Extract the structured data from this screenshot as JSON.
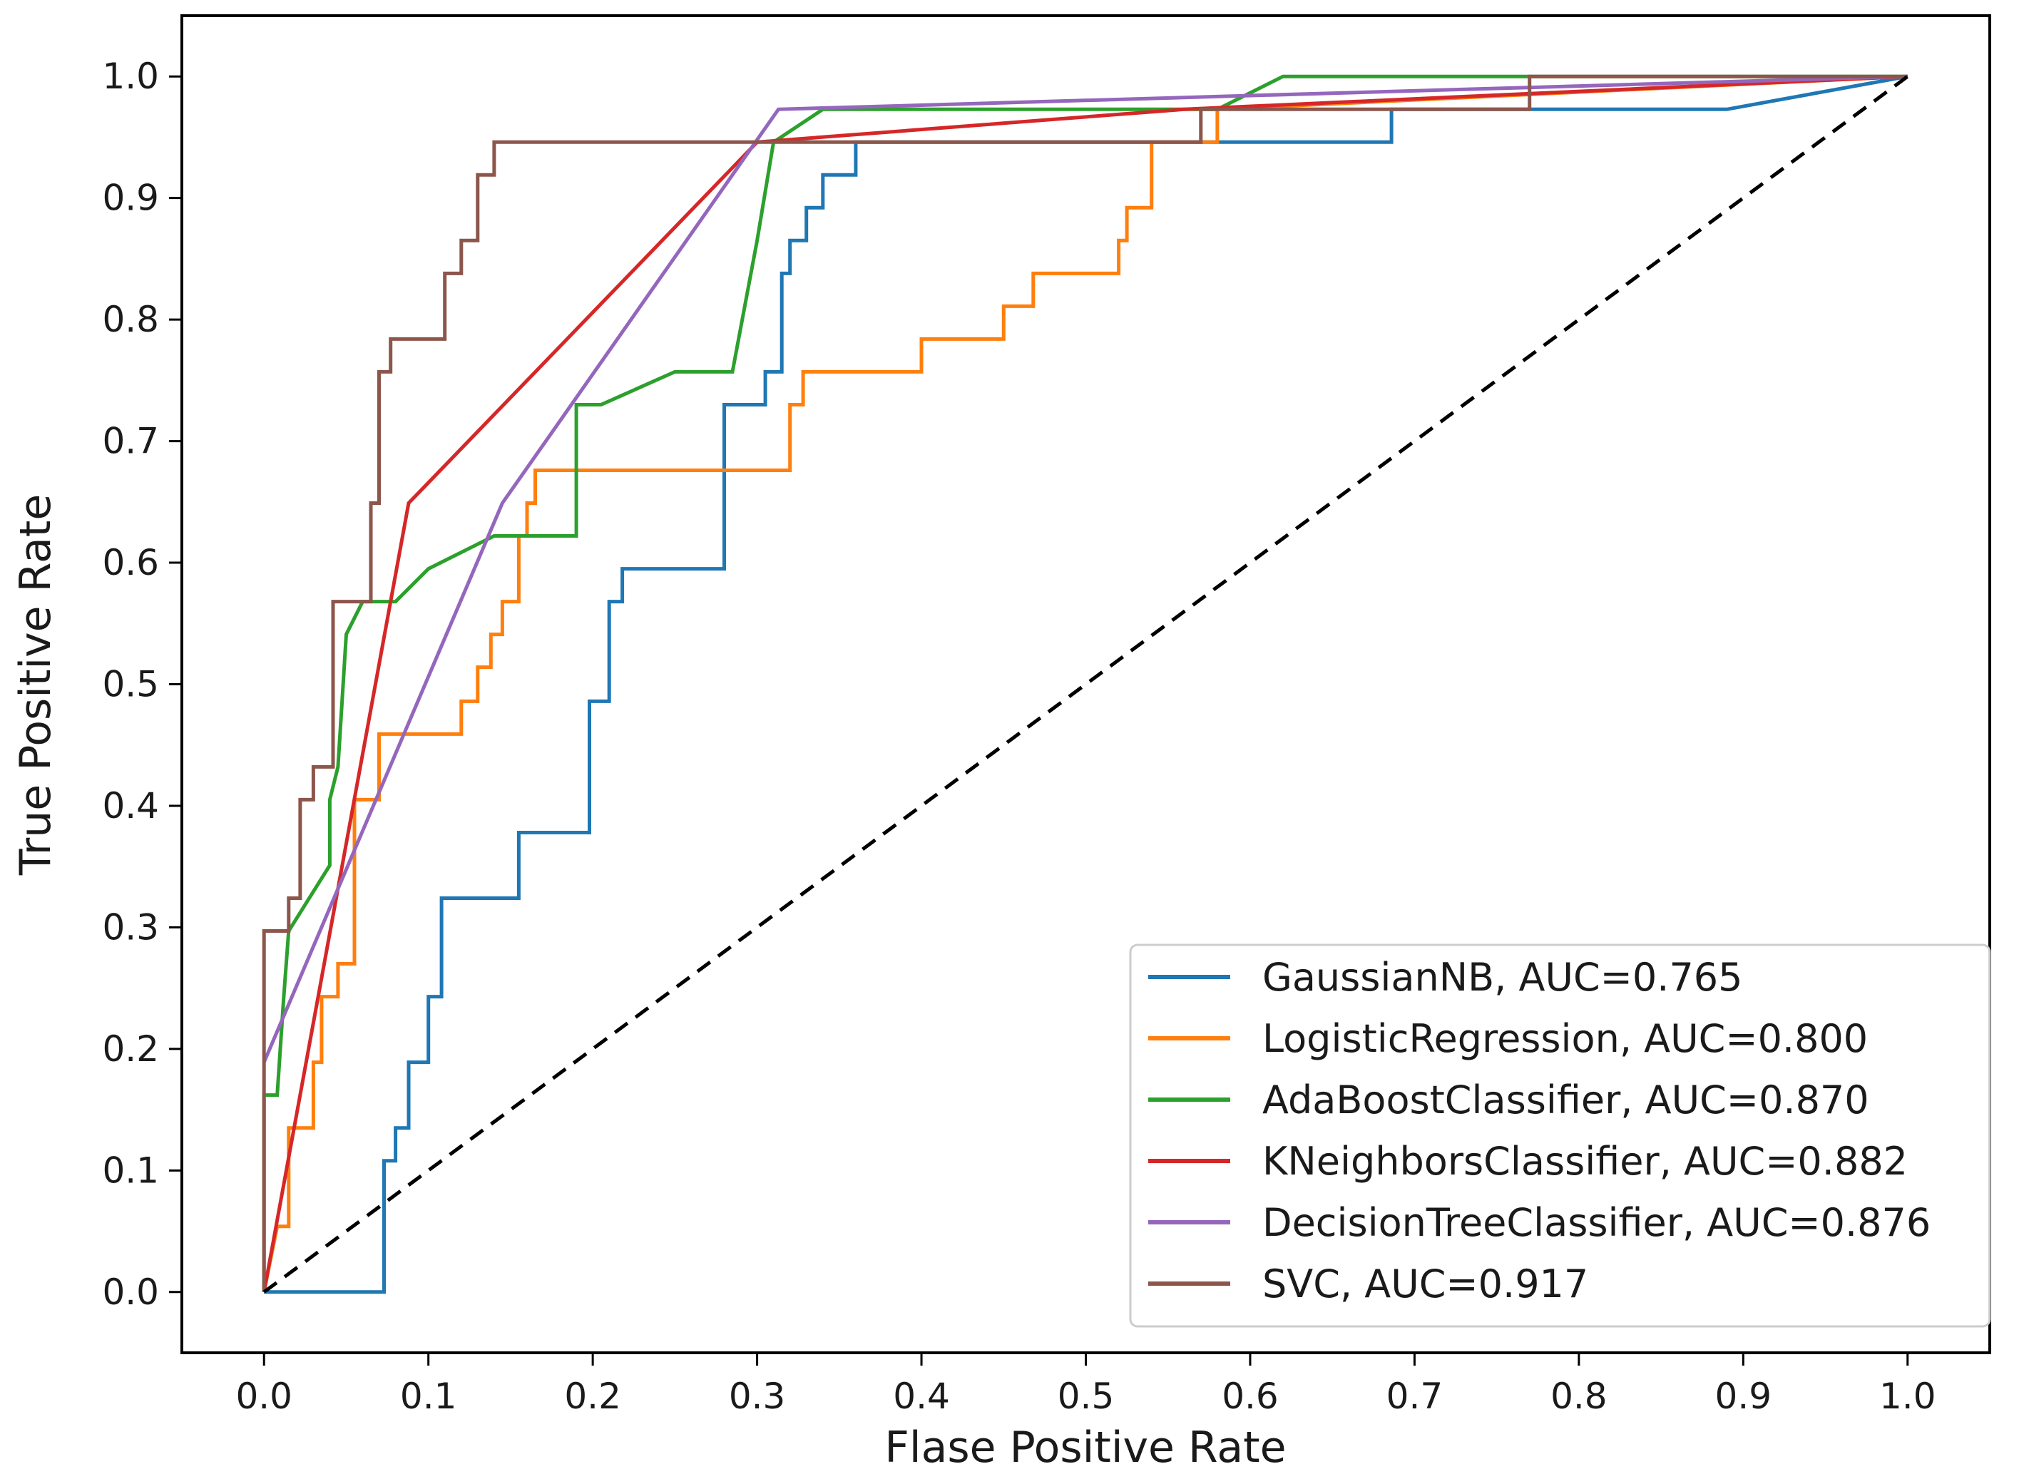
{
  "chart_data": {
    "type": "line",
    "title": "",
    "xlabel": "Flase Positive Rate",
    "ylabel": "True Positive Rate",
    "xlim": [
      -0.05,
      1.05
    ],
    "ylim": [
      -0.05,
      1.05
    ],
    "xticks": [
      "0.0",
      "0.1",
      "0.2",
      "0.3",
      "0.4",
      "0.5",
      "0.6",
      "0.7",
      "0.8",
      "0.9",
      "1.0"
    ],
    "yticks": [
      "0.0",
      "0.1",
      "0.2",
      "0.3",
      "0.4",
      "0.5",
      "0.6",
      "0.7",
      "0.8",
      "0.9",
      "1.0"
    ],
    "legend_position": "lower-right",
    "series": [
      {
        "name": "GaussianNB",
        "label": "GaussianNB, AUC=0.765",
        "auc": 0.765,
        "color": "#1f77b4",
        "x": [
          0.0,
          0.073,
          0.073,
          0.08,
          0.08,
          0.088,
          0.088,
          0.1,
          0.1,
          0.108,
          0.108,
          0.155,
          0.155,
          0.198,
          0.198,
          0.21,
          0.21,
          0.218,
          0.218,
          0.28,
          0.28,
          0.305,
          0.305,
          0.315,
          0.315,
          0.32,
          0.32,
          0.33,
          0.33,
          0.34,
          0.34,
          0.36,
          0.36,
          0.365,
          0.365,
          0.58,
          0.58,
          0.686,
          0.686,
          0.89,
          1.0
        ],
        "y": [
          0.0,
          0.0,
          0.108,
          0.108,
          0.135,
          0.135,
          0.189,
          0.189,
          0.243,
          0.243,
          0.324,
          0.324,
          0.378,
          0.378,
          0.486,
          0.486,
          0.568,
          0.568,
          0.595,
          0.595,
          0.73,
          0.73,
          0.757,
          0.757,
          0.838,
          0.838,
          0.865,
          0.865,
          0.892,
          0.892,
          0.919,
          0.919,
          0.946,
          0.946,
          0.946,
          0.946,
          0.946,
          0.946,
          0.973,
          0.973,
          1.0
        ]
      },
      {
        "name": "LogisticRegression",
        "label": "LogisticRegression, AUC=0.800",
        "auc": 0.8,
        "color": "#ff7f0e",
        "x": [
          0.0,
          0.008,
          0.015,
          0.015,
          0.03,
          0.03,
          0.035,
          0.035,
          0.045,
          0.045,
          0.055,
          0.055,
          0.07,
          0.07,
          0.12,
          0.12,
          0.13,
          0.13,
          0.138,
          0.138,
          0.145,
          0.145,
          0.155,
          0.155,
          0.16,
          0.16,
          0.165,
          0.165,
          0.175,
          0.175,
          0.32,
          0.32,
          0.328,
          0.328,
          0.38,
          0.38,
          0.4,
          0.4,
          0.45,
          0.45,
          0.468,
          0.468,
          0.52,
          0.52,
          0.525,
          0.525,
          0.53,
          0.53,
          0.54,
          0.54,
          0.58,
          0.58,
          1.0
        ],
        "y": [
          0.0,
          0.054,
          0.054,
          0.135,
          0.135,
          0.189,
          0.189,
          0.243,
          0.243,
          0.27,
          0.27,
          0.405,
          0.405,
          0.459,
          0.459,
          0.486,
          0.486,
          0.514,
          0.514,
          0.541,
          0.541,
          0.568,
          0.568,
          0.622,
          0.622,
          0.649,
          0.649,
          0.676,
          0.676,
          0.676,
          0.676,
          0.73,
          0.73,
          0.757,
          0.757,
          0.757,
          0.757,
          0.784,
          0.784,
          0.811,
          0.811,
          0.838,
          0.838,
          0.865,
          0.865,
          0.892,
          0.892,
          0.892,
          0.892,
          0.946,
          0.946,
          0.973,
          1.0
        ]
      },
      {
        "name": "AdaBoostClassifier",
        "label": "AdaBoostClassifier, AUC=0.870",
        "auc": 0.87,
        "color": "#2ca02c",
        "x": [
          0.0,
          0.0,
          0.008,
          0.008,
          0.012,
          0.015,
          0.04,
          0.04,
          0.045,
          0.05,
          0.06,
          0.08,
          0.1,
          0.14,
          0.19,
          0.19,
          0.205,
          0.25,
          0.285,
          0.3,
          0.31,
          0.34,
          0.35,
          0.58,
          0.62,
          1.0
        ],
        "y": [
          0.0,
          0.162,
          0.162,
          0.162,
          0.243,
          0.297,
          0.351,
          0.405,
          0.432,
          0.541,
          0.568,
          0.568,
          0.595,
          0.622,
          0.622,
          0.73,
          0.73,
          0.757,
          0.757,
          0.865,
          0.946,
          0.973,
          0.973,
          0.973,
          1.0,
          1.0
        ]
      },
      {
        "name": "KNeighborsClassifier",
        "label": "KNeighborsClassifier, AUC=0.882",
        "auc": 0.882,
        "color": "#d62728",
        "x": [
          0.0,
          0.088,
          0.3,
          0.56,
          1.0
        ],
        "y": [
          0.0,
          0.649,
          0.946,
          0.973,
          1.0
        ]
      },
      {
        "name": "DecisionTreeClassifier",
        "label": "DecisionTreeClassifier, AUC=0.876",
        "auc": 0.876,
        "color": "#9467bd",
        "x": [
          0.0,
          0.145,
          0.313,
          1.0
        ],
        "y": [
          0.189,
          0.649,
          0.973,
          1.0
        ]
      },
      {
        "name": "SVC",
        "label": "SVC, AUC=0.917",
        "auc": 0.917,
        "color": "#8c564b",
        "x": [
          0.0,
          0.0,
          0.015,
          0.015,
          0.022,
          0.022,
          0.03,
          0.03,
          0.042,
          0.042,
          0.065,
          0.065,
          0.07,
          0.07,
          0.077,
          0.077,
          0.085,
          0.085,
          0.11,
          0.11,
          0.12,
          0.12,
          0.13,
          0.13,
          0.14,
          0.14,
          0.15,
          0.15,
          0.57,
          0.57,
          0.63,
          0.63,
          0.77,
          0.77,
          1.0
        ],
        "y": [
          0.0,
          0.297,
          0.297,
          0.324,
          0.324,
          0.405,
          0.405,
          0.432,
          0.432,
          0.568,
          0.568,
          0.649,
          0.649,
          0.757,
          0.757,
          0.784,
          0.784,
          0.784,
          0.784,
          0.838,
          0.838,
          0.865,
          0.865,
          0.919,
          0.919,
          0.946,
          0.946,
          0.946,
          0.946,
          0.973,
          0.973,
          0.973,
          0.973,
          1.0,
          1.0
        ]
      },
      {
        "name": "Chance",
        "label": "",
        "color": "#000000",
        "dashed": true,
        "x": [
          0.0,
          1.0
        ],
        "y": [
          0.0,
          1.0
        ]
      }
    ]
  }
}
